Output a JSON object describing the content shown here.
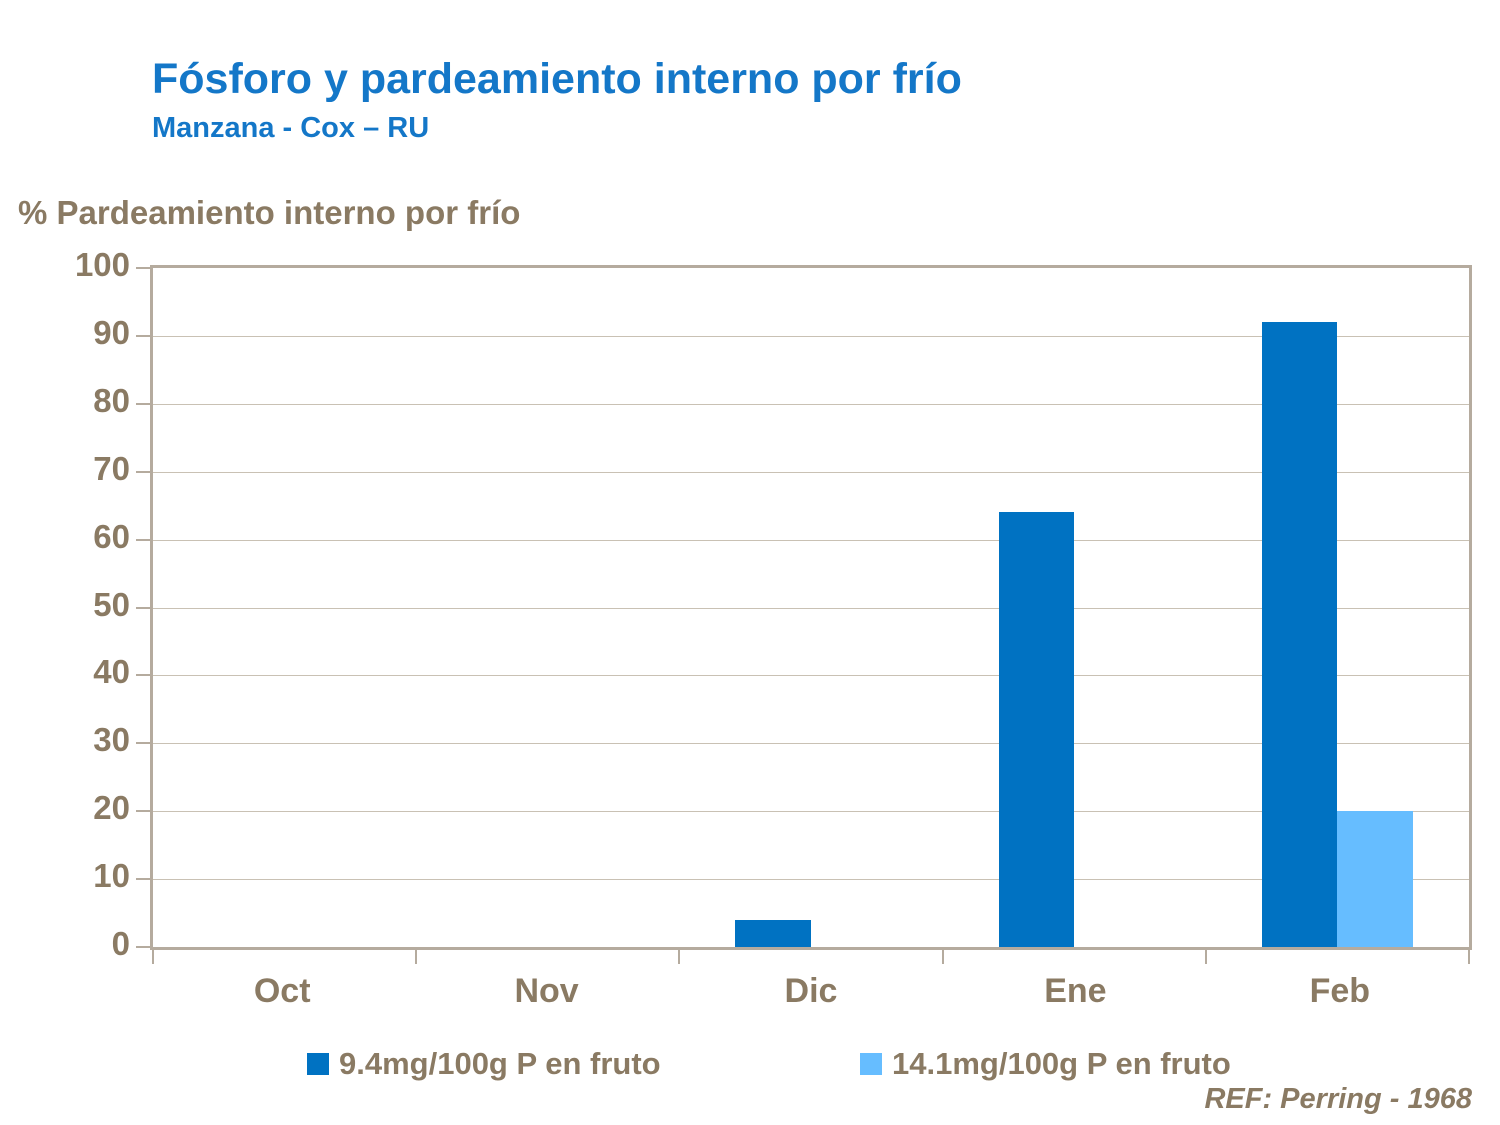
{
  "header": {
    "title": "Fósforo y pardeamiento interno por frío",
    "subtitle": "Manzana - Cox – RU"
  },
  "footer": {
    "reference": "REF: Perring - 1968"
  },
  "colors": {
    "title_blue": "#1477C8",
    "text_brown": "#8A7A63",
    "border_tan": "#B5AB9E",
    "grid_tan": "#C9C1B4",
    "series1_dark_blue": "#0072C2",
    "series2_light_blue": "#66BDFF"
  },
  "chart_data": {
    "type": "bar",
    "title": "Fósforo y pardeamiento interno por frío",
    "subtitle": "Manzana - Cox – RU",
    "ylabel": "% Pardeamiento interno por frío",
    "xlabel": "",
    "categories": [
      "Oct",
      "Nov",
      "Dic",
      "Ene",
      "Feb"
    ],
    "series": [
      {
        "name": "9.4mg/100g P en fruto",
        "color": "#0072C2",
        "values": [
          0,
          0,
          4,
          64,
          92
        ]
      },
      {
        "name": "14.1mg/100g P en fruto",
        "color": "#66BDFF",
        "values": [
          0,
          0,
          0,
          0,
          20
        ]
      }
    ],
    "ylim": [
      0,
      100
    ],
    "yticks": [
      0,
      10,
      20,
      30,
      40,
      50,
      60,
      70,
      80,
      90,
      100
    ],
    "grid": true,
    "legend_position": "bottom",
    "annotation": "REF: Perring - 1968"
  }
}
